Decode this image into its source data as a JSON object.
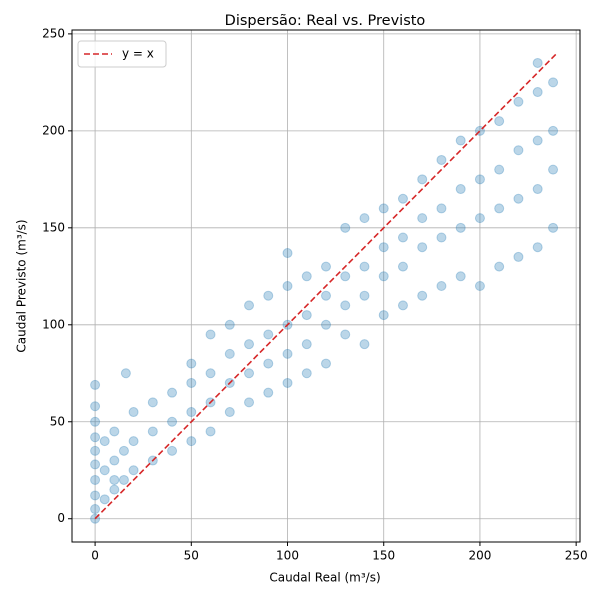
{
  "chart_data": {
    "type": "scatter",
    "title": "Dispersão: Real vs. Previsto",
    "x_label": "Caudal Real (m³/s)",
    "y_label": "Caudal Previsto (m³/s)",
    "xlim": [
      -12,
      252
    ],
    "ylim": [
      -12,
      252
    ],
    "xticks": [
      0,
      50,
      100,
      150,
      200,
      250
    ],
    "yticks": [
      0,
      50,
      100,
      150,
      200,
      250
    ],
    "grid": true,
    "legend": "upper left",
    "scatter": {
      "color": "#1f77b4",
      "x": [
        0,
        0,
        0,
        0,
        0,
        0,
        0,
        0,
        0,
        0,
        5,
        5,
        5,
        10,
        10,
        10,
        10,
        16,
        15,
        15,
        20,
        20,
        20,
        30,
        30,
        30,
        40,
        40,
        40,
        50,
        50,
        50,
        50,
        60,
        60,
        60,
        60,
        70,
        70,
        70,
        70,
        80,
        80,
        80,
        80,
        90,
        90,
        90,
        90,
        100,
        100,
        100,
        100,
        100,
        110,
        110,
        110,
        110,
        120,
        120,
        120,
        120,
        130,
        130,
        130,
        130,
        140,
        140,
        140,
        140,
        150,
        150,
        150,
        150,
        160,
        160,
        160,
        160,
        170,
        170,
        170,
        170,
        180,
        180,
        180,
        180,
        190,
        190,
        190,
        190,
        200,
        200,
        200,
        200,
        210,
        210,
        210,
        210,
        220,
        220,
        220,
        220,
        230,
        230,
        230,
        230,
        230,
        238,
        238,
        238,
        238
      ],
      "y": [
        0,
        5,
        12,
        20,
        28,
        35,
        42,
        50,
        58,
        69,
        10,
        25,
        40,
        15,
        30,
        45,
        20,
        75,
        20,
        35,
        25,
        40,
        55,
        30,
        45,
        60,
        35,
        50,
        65,
        40,
        55,
        70,
        80,
        45,
        60,
        75,
        95,
        55,
        70,
        85,
        100,
        60,
        75,
        90,
        110,
        65,
        80,
        95,
        115,
        70,
        85,
        100,
        120,
        137,
        75,
        90,
        105,
        125,
        80,
        100,
        115,
        130,
        95,
        110,
        125,
        150,
        90,
        115,
        130,
        155,
        105,
        125,
        140,
        160,
        110,
        130,
        145,
        165,
        115,
        140,
        155,
        175,
        120,
        145,
        160,
        185,
        125,
        150,
        170,
        195,
        120,
        155,
        175,
        200,
        130,
        160,
        180,
        205,
        135,
        165,
        190,
        215,
        140,
        170,
        195,
        220,
        235,
        150,
        180,
        200,
        225
      ]
    },
    "reference_line": {
      "name": "y = x",
      "color": "#d62728",
      "x": [
        0,
        240
      ],
      "y": [
        0,
        240
      ]
    }
  }
}
